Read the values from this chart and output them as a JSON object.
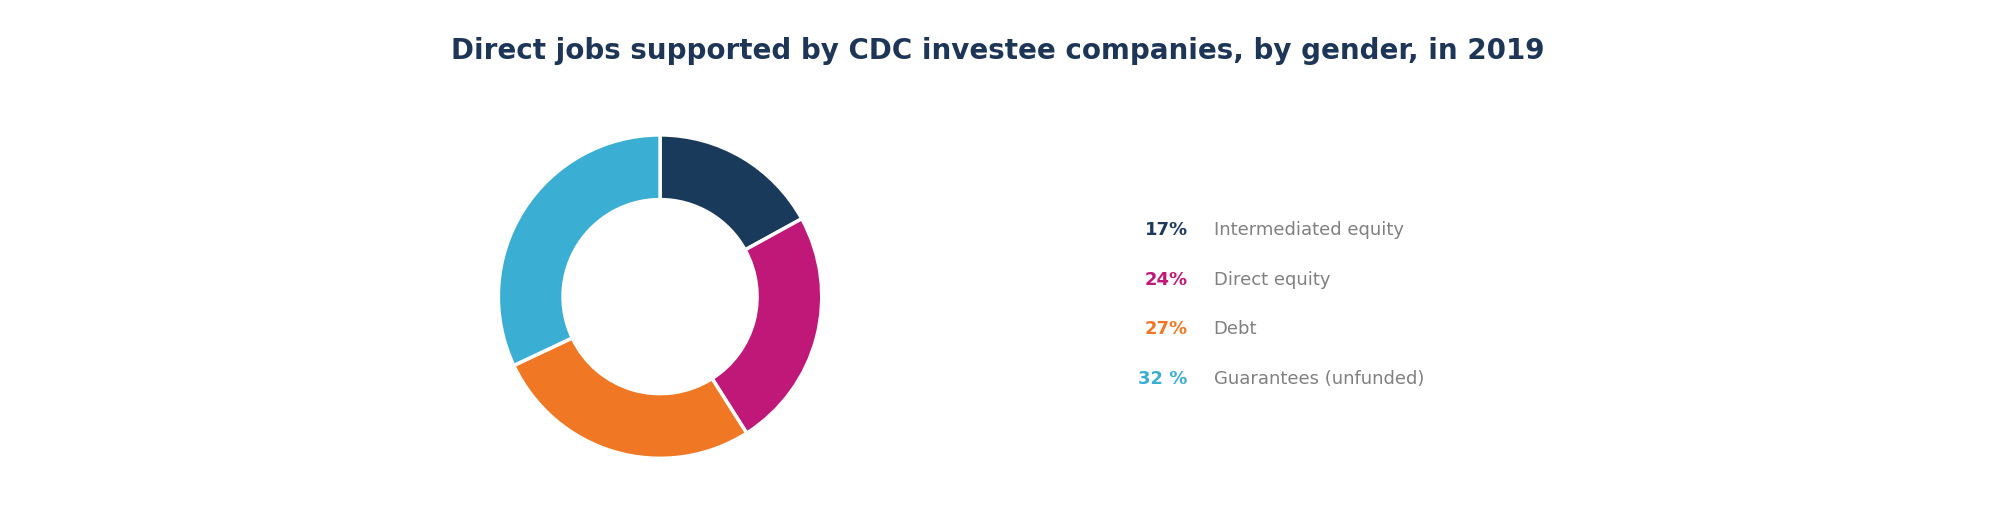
{
  "title": "Direct jobs supported by CDC investee companies, by gender, in 2019",
  "title_color": "#1d3557",
  "title_fontsize": 20,
  "slices": [
    17,
    24,
    27,
    32
  ],
  "labels": [
    "Intermediated equity",
    "Direct equity",
    "Debt",
    "Guarantees (unfunded)"
  ],
  "colors": [
    "#1a3a5c",
    "#c01878",
    "#f07824",
    "#3baed4"
  ],
  "pct_colors": [
    "#1a3a5c",
    "#c01878",
    "#f07824",
    "#3baed4"
  ],
  "pct_labels": [
    "17%",
    "24%",
    "27%",
    "32 %"
  ],
  "label_color": "#808080",
  "background_color": "#ffffff",
  "donut_width": 0.4,
  "start_angle": 90
}
